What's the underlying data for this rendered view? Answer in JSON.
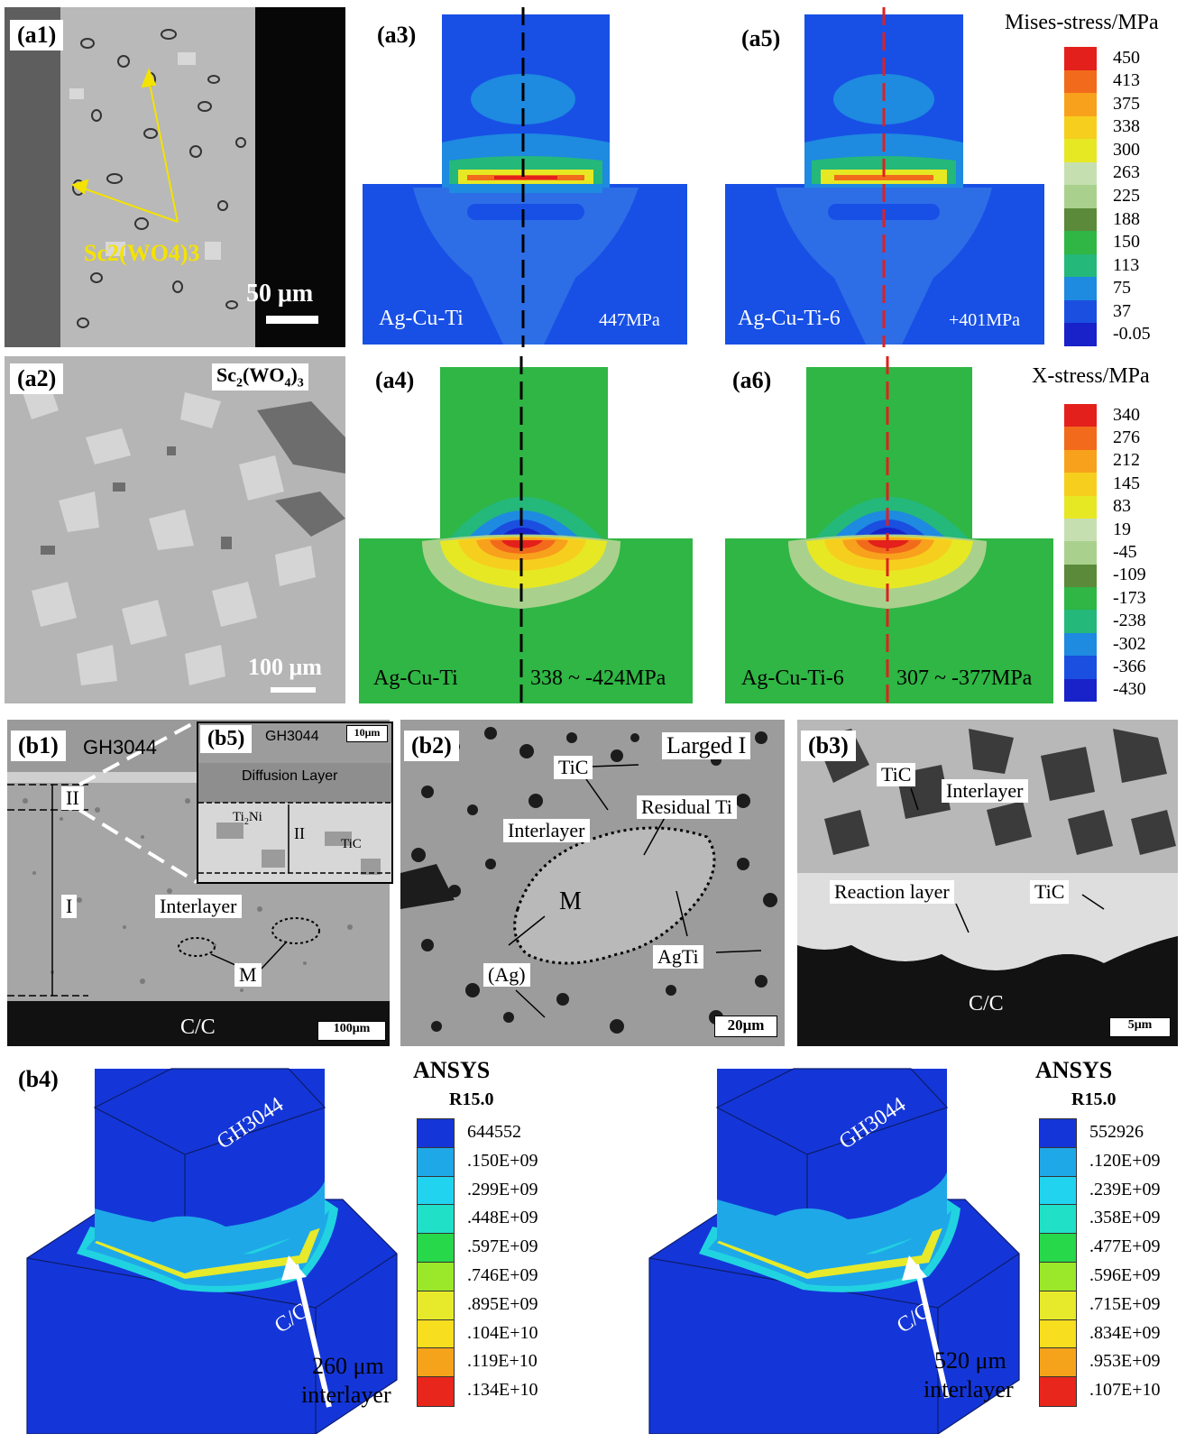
{
  "panels": {
    "a1": {
      "label": "(a1)",
      "annotation": "Sc2(WO4)3",
      "scale": "50 μm"
    },
    "a2": {
      "label": "(a2)",
      "annotation_main": "Sc",
      "annotation_sub1": "2",
      "annotation_mid": "(WO",
      "annotation_sub2": "4",
      "annotation_end": ")",
      "annotation_sub3": "3",
      "scale": "100 μm"
    },
    "a3": {
      "label": "(a3)",
      "name": "Ag-Cu-Ti",
      "value": "447MPa"
    },
    "a5": {
      "label": "(a5)",
      "name": "Ag-Cu-Ti-6",
      "value": "+401MPa"
    },
    "a4": {
      "label": "(a4)",
      "name": "Ag-Cu-Ti",
      "value": "338 ~ -424MPa"
    },
    "a6": {
      "label": "(a6)",
      "name": "Ag-Cu-Ti-6",
      "value": "307 ~ -377MPa"
    },
    "b1": {
      "label": "(b1)",
      "gh": "GH3044",
      "ii": "II",
      "i": "I",
      "interlayer": "Interlayer",
      "m": "M",
      "cc": "C/C",
      "scale": "100μm"
    },
    "b5": {
      "label": "(b5)",
      "gh": "GH3044",
      "diffusion": "Diffusion Layer",
      "ti2ni_main": "Ti",
      "ti2ni_sub": "2",
      "ti2ni_end": "Ni",
      "ii": "II",
      "tic": "TiC",
      "scale": "10μm"
    },
    "b2": {
      "label": "(b2)",
      "title": "Larged I",
      "tic": "TiC",
      "residual": "Residual Ti",
      "interlayer": "Interlayer",
      "m": "M",
      "ag": "(Ag)",
      "agti": "AgTi",
      "scale": "20μm"
    },
    "b3": {
      "label": "(b3)",
      "tic1": "TiC",
      "interlayer": "Interlayer",
      "reaction": "Reaction layer",
      "tic2": "TiC",
      "cc": "C/C",
      "scale": "5μm"
    },
    "b4": {
      "label": "(b4)"
    }
  },
  "mises_legend": {
    "title": "Mises-stress/MPa",
    "ticks": [
      "450",
      "413",
      "375",
      "338",
      "300",
      "263",
      "225",
      "188",
      "150",
      "113",
      "75",
      "37",
      "-0.05"
    ],
    "colors": [
      "#e3201b",
      "#f26a1b",
      "#f8a11c",
      "#f6cf1e",
      "#e7e824",
      "#c6dfb0",
      "#a9d18d",
      "#5b8a3a",
      "#2fb644",
      "#24b87a",
      "#1e8ae0",
      "#1a4fe0",
      "#1822c8"
    ]
  },
  "x_legend": {
    "title": "X-stress/MPa",
    "ticks": [
      "340",
      "276",
      "212",
      "145",
      "83",
      "19",
      "-45",
      "-109",
      "-173",
      "-238",
      "-302",
      "-366",
      "-430"
    ],
    "colors": [
      "#e3201b",
      "#f26a1b",
      "#f8a11c",
      "#f6cf1e",
      "#e7e824",
      "#c6dfb0",
      "#a9d18d",
      "#5b8a3a",
      "#2fb644",
      "#24b87a",
      "#1e8ae0",
      "#1a4fe0",
      "#1822c8"
    ]
  },
  "ansys_left": {
    "title": "ANSYS",
    "version": "R15.0",
    "ticks": [
      "644552",
      ".150E+09",
      ".299E+09",
      ".448E+09",
      ".597E+09",
      ".746E+09",
      ".895E+09",
      ".104E+10",
      ".119E+10",
      ".134E+10"
    ],
    "colors": [
      "#1436d8",
      "#1fa8e8",
      "#22d3f0",
      "#21e0c8",
      "#27d84a",
      "#9be82a",
      "#e6ea2a",
      "#f7de1e",
      "#f6a31c",
      "#e8261c"
    ],
    "top_label": "GH3044",
    "bottom_label": "C/C",
    "arrow_label_1": "260 μm",
    "arrow_label_2": "interlayer"
  },
  "ansys_right": {
    "title": "ANSYS",
    "version": "R15.0",
    "ticks": [
      "552926",
      ".120E+09",
      ".239E+09",
      ".358E+09",
      ".477E+09",
      ".596E+09",
      ".715E+09",
      ".834E+09",
      ".953E+09",
      ".107E+10"
    ],
    "colors": [
      "#1436d8",
      "#1fa8e8",
      "#22d3f0",
      "#21e0c8",
      "#27d84a",
      "#9be82a",
      "#e6ea2a",
      "#f7de1e",
      "#f6a31c",
      "#e8261c"
    ],
    "top_label": "GH3044",
    "bottom_label": "C/C",
    "arrow_label_1": "520 μm",
    "arrow_label_2": "interlayer"
  }
}
